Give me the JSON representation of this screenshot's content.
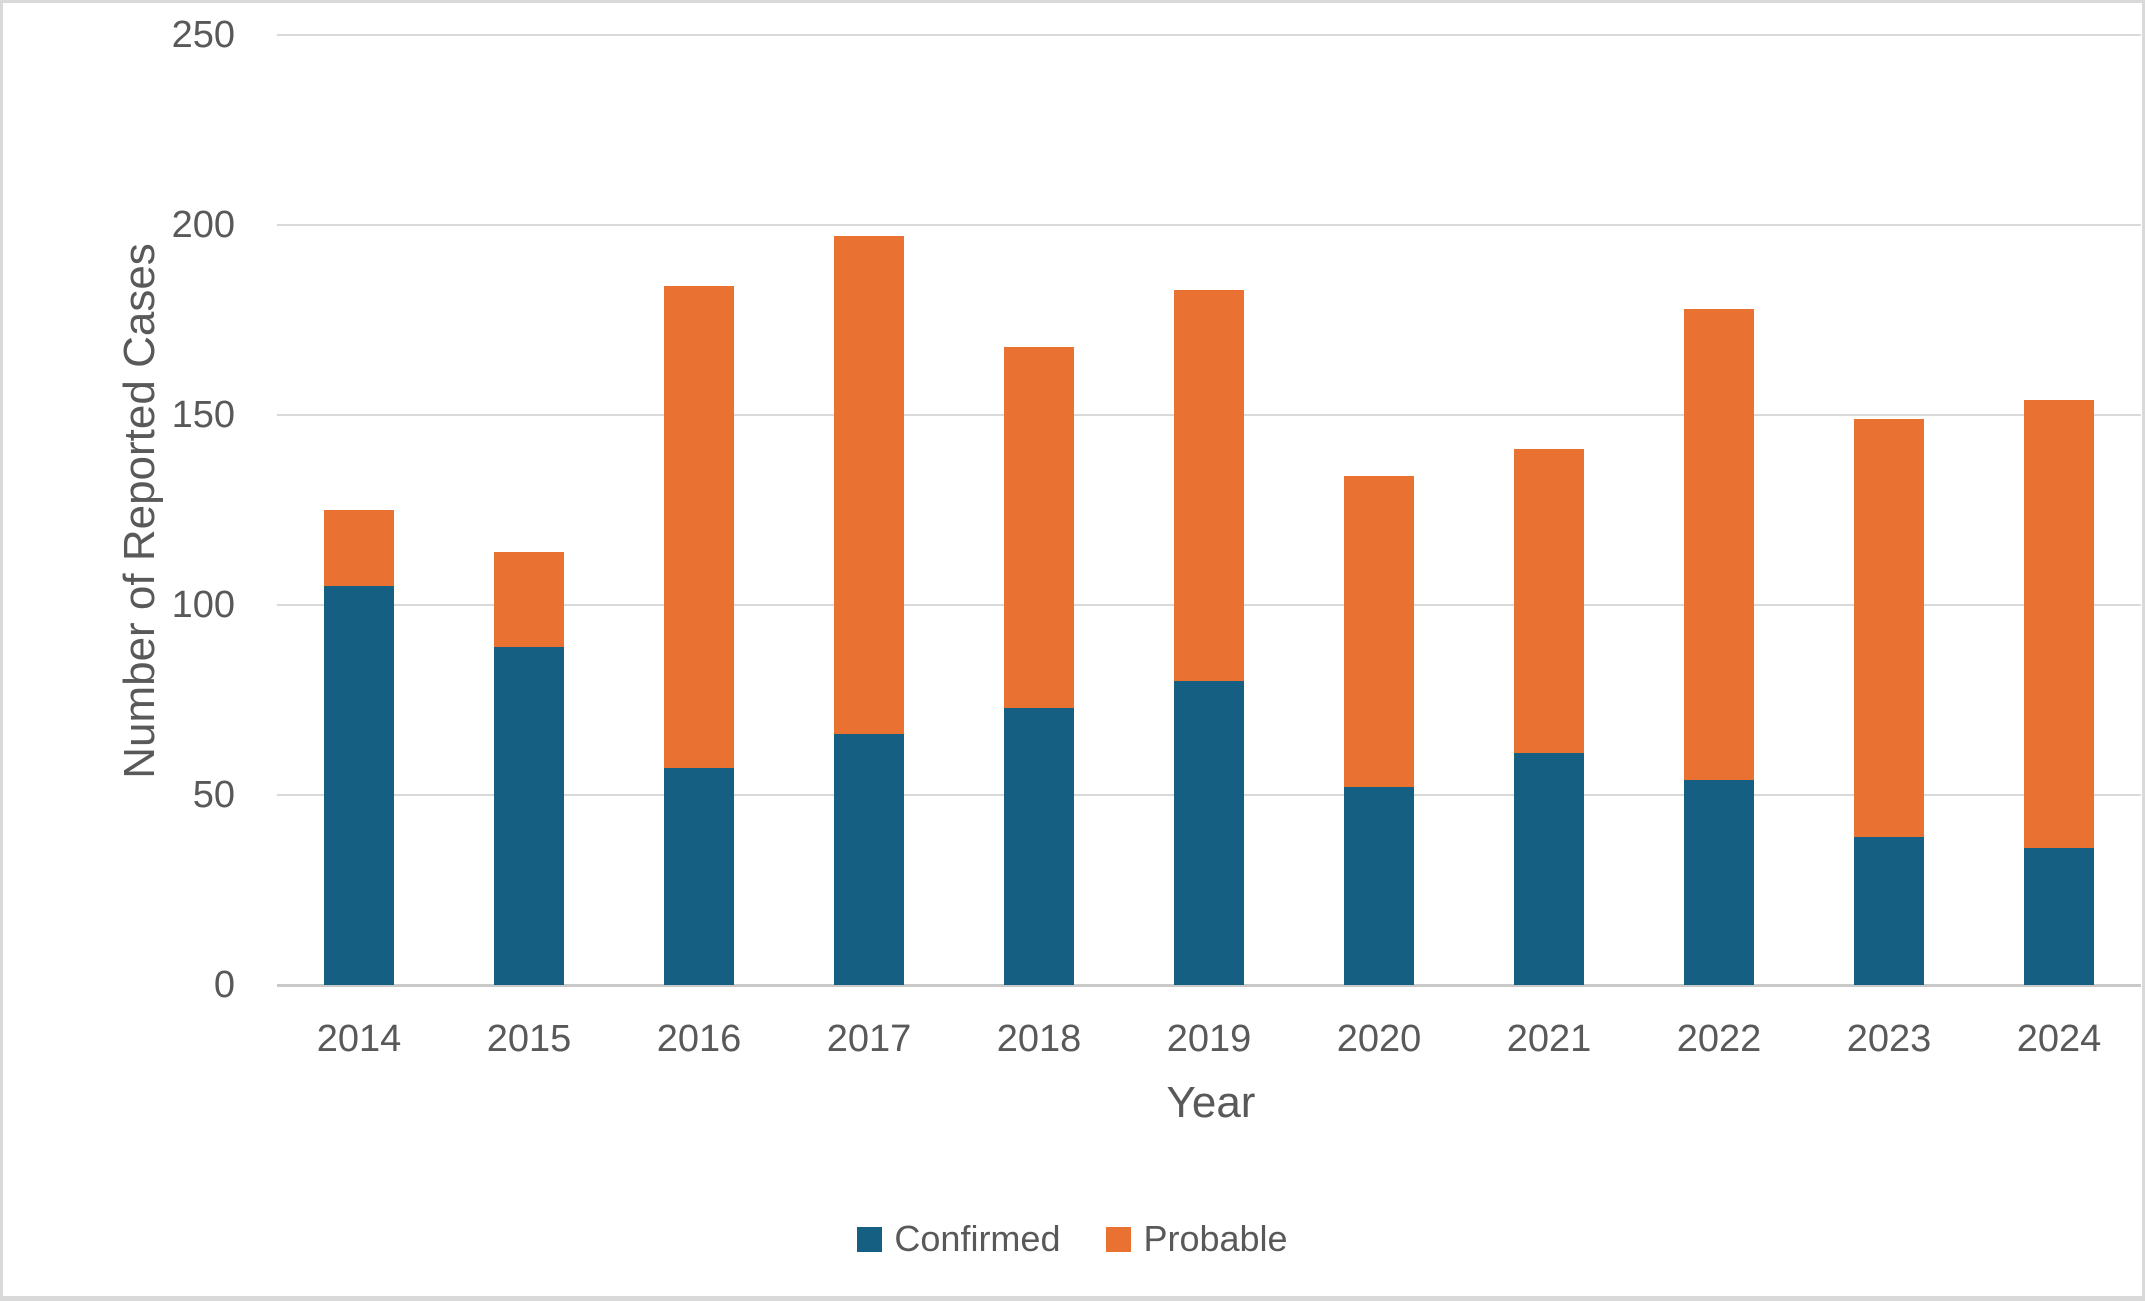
{
  "chart_data": {
    "type": "bar",
    "stacked": true,
    "title": "",
    "xlabel": "Year",
    "ylabel": "Number of Reported Cases",
    "categories": [
      "2014",
      "2015",
      "2016",
      "2017",
      "2018",
      "2019",
      "2020",
      "2021",
      "2022",
      "2023",
      "2024"
    ],
    "series": [
      {
        "name": "Confirmed",
        "color": "#156082",
        "values": [
          105,
          89,
          57,
          66,
          73,
          80,
          52,
          61,
          54,
          39,
          36
        ]
      },
      {
        "name": "Probable",
        "color": "#E97132",
        "values": [
          20,
          25,
          127,
          131,
          95,
          103,
          82,
          80,
          124,
          110,
          118
        ]
      }
    ],
    "totals": [
      125,
      114,
      184,
      197,
      168,
      183,
      134,
      141,
      178,
      149,
      154
    ],
    "ylim": [
      0,
      250
    ],
    "yticks": [
      0,
      50,
      100,
      150,
      200,
      250
    ],
    "grid": true,
    "legend_position": "bottom"
  },
  "styles": {
    "background": "#FFFFFF",
    "frame_border_color": "#D9D9D9",
    "gridline_color": "#D9D9D9",
    "axis_line_color": "#C9C9C9",
    "text_color": "#595959",
    "confirmed_color": "#156082",
    "probable_color": "#E97132"
  }
}
